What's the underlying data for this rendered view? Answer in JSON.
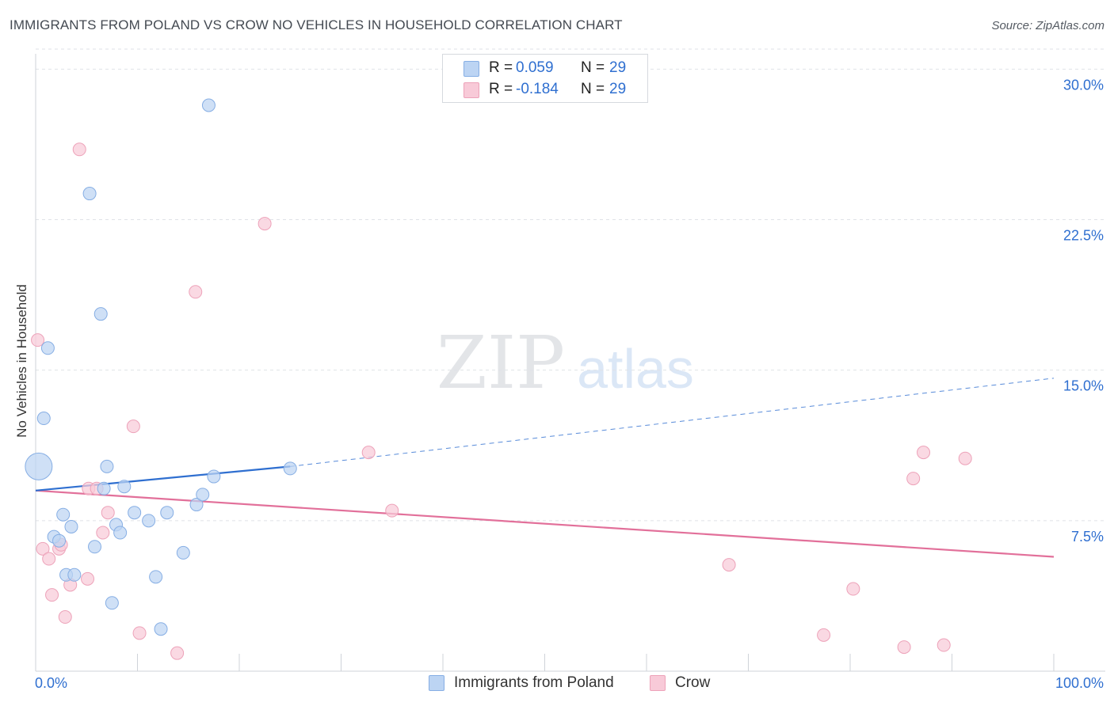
{
  "header": {
    "title": "IMMIGRANTS FROM POLAND VS CROW NO VEHICLES IN HOUSEHOLD CORRELATION CHART",
    "source": "Source: ZipAtlas.com"
  },
  "watermark": {
    "zip": "ZIP",
    "atlas": "atlas"
  },
  "legend": {
    "r_label": "R =",
    "n_label": "N =",
    "rows": [
      {
        "r": "0.059",
        "n": "29"
      },
      {
        "r": "-0.184",
        "n": "29"
      }
    ]
  },
  "bottom_legend": {
    "series1": "Immigrants from Poland",
    "series2": "Crow"
  },
  "colors": {
    "series1_fill": "#bcd4f3",
    "series1_stroke": "#86aee4",
    "series1_line": "#2f6fd0",
    "series2_fill": "#f8cad8",
    "series2_stroke": "#eda2b9",
    "series2_line": "#e2709a",
    "axis_text": "#2f6fd0",
    "grid": "#dfe2e7"
  },
  "chart_data": {
    "type": "scatter",
    "title": "IMMIGRANTS FROM POLAND VS CROW NO VEHICLES IN HOUSEHOLD CORRELATION CHART",
    "xlabel": "",
    "ylabel": "No Vehicles in Household",
    "xlim": [
      0,
      100
    ],
    "ylim": [
      0,
      31
    ],
    "x_tick_labels": [
      "0.0%",
      "100.0%"
    ],
    "y_ticks": [
      7.5,
      15.0,
      22.5,
      30.0
    ],
    "y_tick_labels": [
      "7.5%",
      "15.0%",
      "22.5%",
      "30.0%"
    ],
    "grid": true,
    "legend_position": "top-center",
    "series": [
      {
        "name": "Immigrants from Poland",
        "points": [
          {
            "x": 0.3,
            "y": 10.2,
            "big": true
          },
          {
            "x": 1.2,
            "y": 16.1
          },
          {
            "x": 0.8,
            "y": 12.6
          },
          {
            "x": 5.3,
            "y": 23.8
          },
          {
            "x": 6.4,
            "y": 17.8
          },
          {
            "x": 17.0,
            "y": 28.2
          },
          {
            "x": 7.0,
            "y": 10.2
          },
          {
            "x": 6.7,
            "y": 9.1
          },
          {
            "x": 8.7,
            "y": 9.2
          },
          {
            "x": 2.7,
            "y": 7.8
          },
          {
            "x": 3.5,
            "y": 7.2
          },
          {
            "x": 1.8,
            "y": 6.7
          },
          {
            "x": 2.3,
            "y": 6.5
          },
          {
            "x": 5.8,
            "y": 6.2
          },
          {
            "x": 9.7,
            "y": 7.9
          },
          {
            "x": 11.1,
            "y": 7.5
          },
          {
            "x": 12.9,
            "y": 7.9
          },
          {
            "x": 7.9,
            "y": 7.3
          },
          {
            "x": 8.3,
            "y": 6.9
          },
          {
            "x": 15.8,
            "y": 8.3
          },
          {
            "x": 16.4,
            "y": 8.8
          },
          {
            "x": 17.5,
            "y": 9.7
          },
          {
            "x": 25.0,
            "y": 10.1
          },
          {
            "x": 14.5,
            "y": 5.9
          },
          {
            "x": 11.8,
            "y": 4.7
          },
          {
            "x": 3.0,
            "y": 4.8
          },
          {
            "x": 3.8,
            "y": 4.8
          },
          {
            "x": 7.5,
            "y": 3.4
          },
          {
            "x": 12.3,
            "y": 2.1
          }
        ],
        "trend": {
          "x0": 0,
          "y0": 9.0,
          "x1": 25.0,
          "y1": 10.2,
          "dashed_to_x": 100,
          "dashed_to_y": 14.6
        }
      },
      {
        "name": "Crow",
        "points": [
          {
            "x": 0.2,
            "y": 16.5
          },
          {
            "x": 4.3,
            "y": 26.0
          },
          {
            "x": 22.5,
            "y": 22.3
          },
          {
            "x": 15.7,
            "y": 18.9
          },
          {
            "x": 9.6,
            "y": 12.2
          },
          {
            "x": 32.7,
            "y": 10.9
          },
          {
            "x": 87.2,
            "y": 10.9
          },
          {
            "x": 91.3,
            "y": 10.6
          },
          {
            "x": 86.2,
            "y": 9.6
          },
          {
            "x": 5.2,
            "y": 9.1
          },
          {
            "x": 6.0,
            "y": 9.1
          },
          {
            "x": 7.1,
            "y": 7.9
          },
          {
            "x": 35.0,
            "y": 8.0
          },
          {
            "x": 6.6,
            "y": 6.9
          },
          {
            "x": 0.7,
            "y": 6.1
          },
          {
            "x": 2.3,
            "y": 6.1
          },
          {
            "x": 2.5,
            "y": 6.3
          },
          {
            "x": 1.3,
            "y": 5.6
          },
          {
            "x": 5.1,
            "y": 4.6
          },
          {
            "x": 3.4,
            "y": 4.3
          },
          {
            "x": 1.6,
            "y": 3.8
          },
          {
            "x": 2.9,
            "y": 2.7
          },
          {
            "x": 68.1,
            "y": 5.3
          },
          {
            "x": 80.3,
            "y": 4.1
          },
          {
            "x": 10.2,
            "y": 1.9
          },
          {
            "x": 13.9,
            "y": 0.9
          },
          {
            "x": 77.4,
            "y": 1.8
          },
          {
            "x": 85.3,
            "y": 1.2
          },
          {
            "x": 89.2,
            "y": 1.3
          }
        ],
        "trend": {
          "x0": 0,
          "y0": 9.0,
          "x1": 100,
          "y1": 5.7
        }
      }
    ]
  }
}
